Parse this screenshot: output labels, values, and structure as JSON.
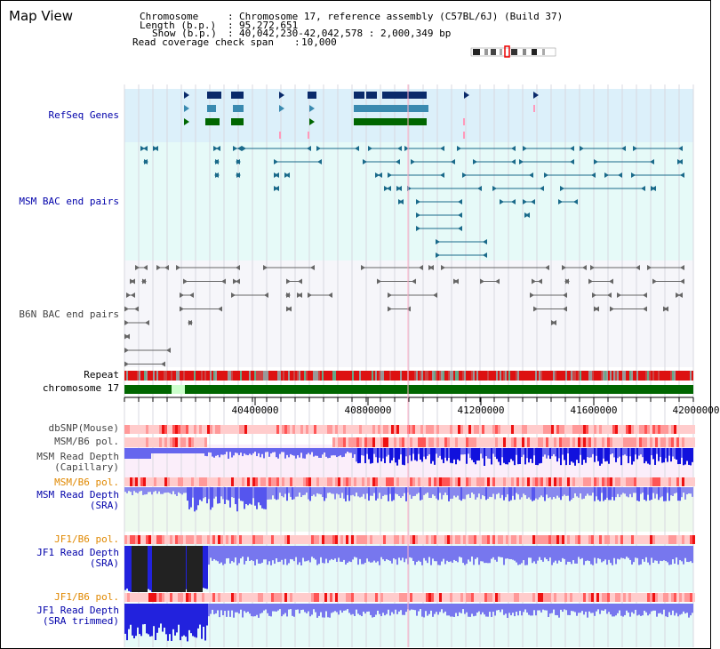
{
  "header": {
    "title": "Map View",
    "chromosome_label": "Chromosome",
    "chromosome_value": "Chromosome 17, reference assembly (C57BL/6J) (Build 37)",
    "length_label": "Length (b.p.)",
    "length_value": "95,272,651",
    "show_label": "Show (b.p.)",
    "show_value": "40,042,230-42,042,578 : 2,000,349 bp",
    "coverage_label": "Read coverage check span",
    "coverage_value": "10,000"
  },
  "tracks": {
    "refseq": "RefSeq Genes",
    "msm_bac": "MSM BAC end pairs",
    "b6n_bac": "B6N BAC end pairs",
    "repeat": "Repeat",
    "chromosome": "chromosome 17",
    "dbsnp": "dbSNP(Mouse)",
    "msm_b6_pol_1": "MSM/B6 pol.",
    "msm_read_depth_cap": "MSM Read Depth\n(Capillary)",
    "msm_b6_pol_2": "MSM/B6 pol.",
    "msm_read_depth_sra": "MSM Read Depth\n(SRA)",
    "jf1_b6_pol_1": "JF1/B6 pol.",
    "jf1_read_depth_sra": "JF1 Read Depth\n(SRA)",
    "jf1_b6_pol_2": "JF1/B6 pol.",
    "jf1_read_depth_trimmed": "JF1 Read Depth\n(SRA trimmed)"
  },
  "axis": {
    "ticks": [
      "40400000",
      "40800000",
      "41200000",
      "41600000",
      "42000000"
    ]
  },
  "colors": {
    "refseq_bg": "#dcf0fa",
    "msm_bac_bg": "#e6faf8",
    "b6n_bac_bg": "#f4f4f8",
    "gene_dark": "#0a2a6a",
    "gene_mid": "#3a8ab0",
    "gene_green": "#006600",
    "bac_teal": "#1a6a8a",
    "bac_gray": "#555555",
    "chrom_green": "#006600",
    "depth_blue": "#2222ee",
    "depth_light": "#8888ee"
  }
}
